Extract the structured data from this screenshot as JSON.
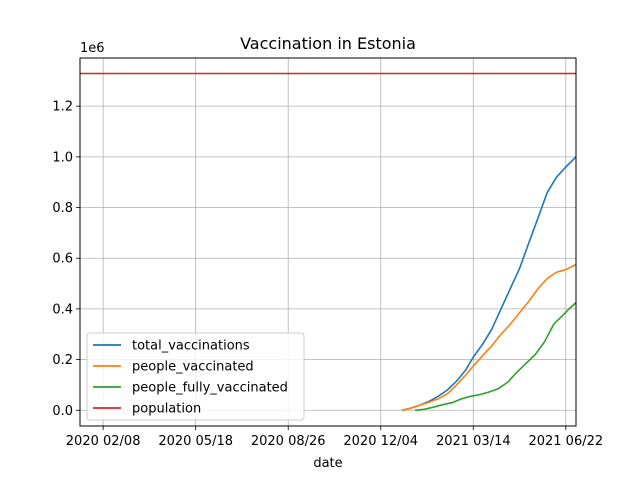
{
  "chart_data": {
    "type": "line",
    "title": "Vaccination in Estonia",
    "xlabel": "date",
    "ylabel": "",
    "y_offset_label": "1e6",
    "xlim": [
      "2020-01-14",
      "2021-07-03"
    ],
    "ylim": [
      -62000,
      1390000
    ],
    "grid": true,
    "legend_position": "lower-left",
    "x_ticks": [
      {
        "date": "2020-02-08",
        "label": "2020 02/08"
      },
      {
        "date": "2020-05-18",
        "label": "2020 05/18"
      },
      {
        "date": "2020-08-26",
        "label": "2020 08/26"
      },
      {
        "date": "2020-12-04",
        "label": "2020 12/04"
      },
      {
        "date": "2021-03-14",
        "label": "2021 03/14"
      },
      {
        "date": "2021-06-22",
        "label": "2021 06/22"
      }
    ],
    "y_ticks": [
      {
        "value": 0,
        "label": "0.0"
      },
      {
        "value": 200000,
        "label": "0.2"
      },
      {
        "value": 400000,
        "label": "0.4"
      },
      {
        "value": 600000,
        "label": "0.6"
      },
      {
        "value": 800000,
        "label": "0.8"
      },
      {
        "value": 1000000,
        "label": "1.0"
      },
      {
        "value": 1200000,
        "label": "1.2"
      }
    ],
    "series": [
      {
        "name": "total_vaccinations",
        "color": "#1f77b4",
        "points": [
          [
            "2020-12-27",
            0
          ],
          [
            "2021-01-05",
            8000
          ],
          [
            "2021-01-15",
            20000
          ],
          [
            "2021-01-25",
            35000
          ],
          [
            "2021-02-04",
            55000
          ],
          [
            "2021-02-14",
            80000
          ],
          [
            "2021-02-24",
            115000
          ],
          [
            "2021-03-06",
            160000
          ],
          [
            "2021-03-14",
            210000
          ],
          [
            "2021-03-24",
            260000
          ],
          [
            "2021-04-03",
            320000
          ],
          [
            "2021-04-13",
            400000
          ],
          [
            "2021-04-23",
            480000
          ],
          [
            "2021-05-03",
            560000
          ],
          [
            "2021-05-13",
            660000
          ],
          [
            "2021-05-23",
            760000
          ],
          [
            "2021-06-02",
            860000
          ],
          [
            "2021-06-12",
            920000
          ],
          [
            "2021-06-22",
            960000
          ],
          [
            "2021-07-03",
            1000000
          ]
        ]
      },
      {
        "name": "people_vaccinated",
        "color": "#ff7f0e",
        "points": [
          [
            "2020-12-27",
            0
          ],
          [
            "2021-01-05",
            8000
          ],
          [
            "2021-01-15",
            20000
          ],
          [
            "2021-01-25",
            32000
          ],
          [
            "2021-02-04",
            45000
          ],
          [
            "2021-02-14",
            65000
          ],
          [
            "2021-02-24",
            100000
          ],
          [
            "2021-03-06",
            140000
          ],
          [
            "2021-03-14",
            175000
          ],
          [
            "2021-03-24",
            215000
          ],
          [
            "2021-04-03",
            255000
          ],
          [
            "2021-04-13",
            300000
          ],
          [
            "2021-04-23",
            340000
          ],
          [
            "2021-05-03",
            385000
          ],
          [
            "2021-05-13",
            430000
          ],
          [
            "2021-05-23",
            480000
          ],
          [
            "2021-06-02",
            520000
          ],
          [
            "2021-06-12",
            545000
          ],
          [
            "2021-06-22",
            555000
          ],
          [
            "2021-07-03",
            575000
          ]
        ]
      },
      {
        "name": "people_fully_vaccinated",
        "color": "#2ca02c",
        "points": [
          [
            "2021-01-10",
            0
          ],
          [
            "2021-01-20",
            4000
          ],
          [
            "2021-01-30",
            12000
          ],
          [
            "2021-02-09",
            22000
          ],
          [
            "2021-02-19",
            30000
          ],
          [
            "2021-03-01",
            45000
          ],
          [
            "2021-03-11",
            55000
          ],
          [
            "2021-03-21",
            62000
          ],
          [
            "2021-03-31",
            72000
          ],
          [
            "2021-04-10",
            85000
          ],
          [
            "2021-04-20",
            110000
          ],
          [
            "2021-04-30",
            150000
          ],
          [
            "2021-05-10",
            185000
          ],
          [
            "2021-05-20",
            220000
          ],
          [
            "2021-05-30",
            270000
          ],
          [
            "2021-06-09",
            340000
          ],
          [
            "2021-06-19",
            375000
          ],
          [
            "2021-06-27",
            405000
          ],
          [
            "2021-07-03",
            425000
          ]
        ]
      },
      {
        "name": "population",
        "color": "#d62728",
        "points": [
          [
            "2020-01-14",
            1329000
          ],
          [
            "2021-07-03",
            1329000
          ]
        ]
      }
    ]
  }
}
